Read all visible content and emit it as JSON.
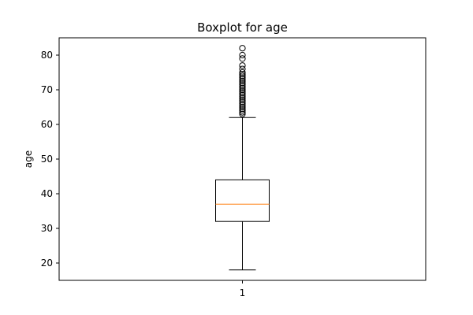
{
  "chart_data": {
    "type": "boxplot",
    "title": "Boxplot for age",
    "xlabel": "",
    "ylabel": "age",
    "ylim": [
      15,
      85
    ],
    "yticks": [
      20,
      30,
      40,
      50,
      60,
      70,
      80
    ],
    "ytick_labels": [
      "20",
      "30",
      "40",
      "50",
      "60",
      "70",
      "80"
    ],
    "categories": [
      "1"
    ],
    "grid": false,
    "box": {
      "whisker_low": 18,
      "q1": 32,
      "median": 37,
      "q3": 44,
      "whisker_high": 62,
      "outliers": [
        63,
        63.5,
        64,
        64.5,
        65,
        65.5,
        66,
        66.5,
        67,
        67.5,
        68,
        68.5,
        69,
        69.5,
        70,
        70.5,
        71,
        71.5,
        72,
        72.5,
        73,
        73.5,
        74,
        74.5,
        75,
        76,
        77,
        79,
        80,
        82
      ]
    },
    "colors": {
      "box": "#000000",
      "median": "#ff7f0e",
      "outlier_edge": "#000000"
    }
  }
}
